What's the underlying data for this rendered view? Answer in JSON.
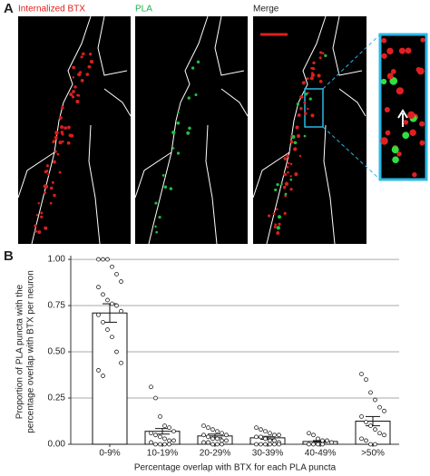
{
  "panel_a": {
    "label": "A",
    "titles": [
      "Internalized BTX",
      "PLA",
      "Merge"
    ]
  },
  "chart_data": {
    "type": "bar",
    "panel_label": "B",
    "y_label": [
      "Proportion of PLA puncta with the",
      "percentage overlap with BTX per neuron"
    ],
    "x_label": "Percentage overlap with BTX for each PLA puncta",
    "categories": [
      "0-9%",
      "10-19%",
      "20-29%",
      "30-39%",
      "40-49%",
      ">50%"
    ],
    "values": [
      0.71,
      0.07,
      0.045,
      0.035,
      0.015,
      0.125
    ],
    "errors": [
      0.05,
      0.015,
      0.01,
      0.008,
      0.005,
      0.025
    ],
    "points": [
      [
        1.0,
        1.0,
        1.0,
        0.96,
        0.92,
        0.88,
        0.85,
        0.81,
        0.78,
        0.76,
        0.75,
        0.72,
        0.7,
        0.66,
        0.62,
        0.58,
        0.5,
        0.44,
        0.4,
        0.37
      ],
      [
        0.31,
        0.25,
        0.15,
        0.1,
        0.09,
        0.07,
        0.06,
        0.05,
        0.04,
        0.03,
        0.02,
        0.02,
        0.01,
        0,
        0,
        0,
        0
      ],
      [
        0.1,
        0.09,
        0.08,
        0.07,
        0.06,
        0.05,
        0.05,
        0.04,
        0.03,
        0.03,
        0.02,
        0.02,
        0.01,
        0.01,
        0,
        0,
        0
      ],
      [
        0.09,
        0.08,
        0.07,
        0.06,
        0.05,
        0.05,
        0.04,
        0.04,
        0.03,
        0.02,
        0.02,
        0.01,
        0,
        0,
        0,
        0,
        0,
        0
      ],
      [
        0.06,
        0.05,
        0.03,
        0.02,
        0.02,
        0.01,
        0,
        0,
        0,
        0
      ],
      [
        0.38,
        0.35,
        0.28,
        0.24,
        0.2,
        0.18,
        0.15,
        0.12,
        0.1,
        0.08,
        0.06,
        0.05,
        0.03,
        0.02,
        0,
        0
      ]
    ],
    "color": "#ffffff",
    "ylim": [
      0,
      1.02
    ],
    "yticks": [
      {
        "value": 0,
        "label": "0.00"
      },
      0.25,
      {
        "value": 0.5,
        "label": "0.50"
      },
      0.75,
      {
        "value": 1,
        "label": "1.00"
      }
    ],
    "grid": true
  }
}
